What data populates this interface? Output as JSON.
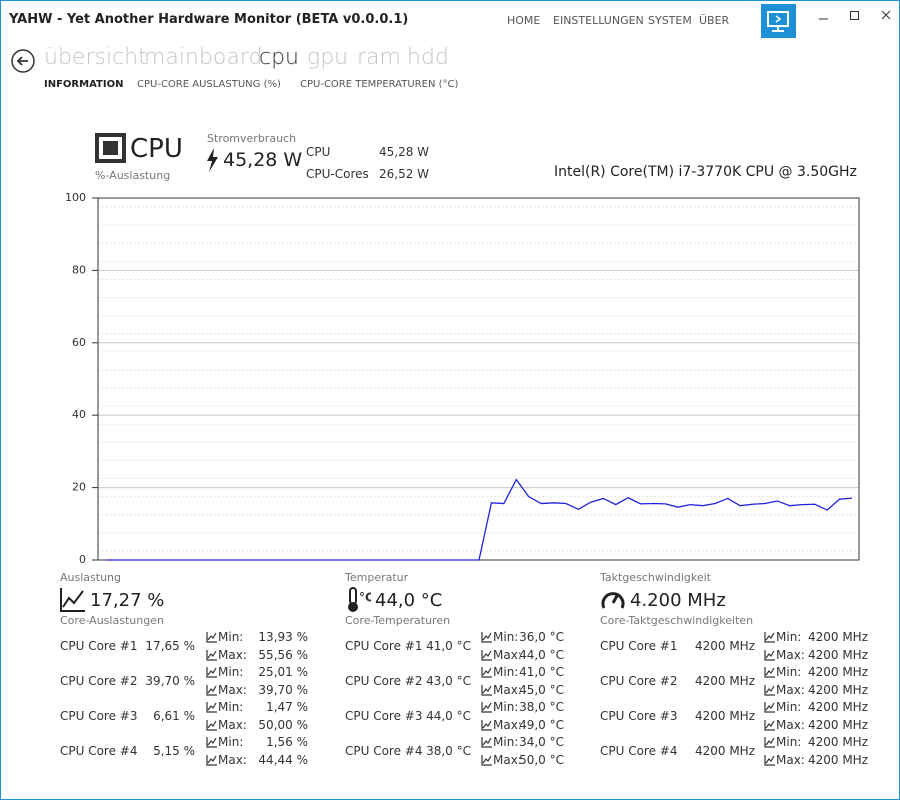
{
  "window": {
    "title": "YAHW - Yet Another Hardware Monitor (BETA v0.0.0.1)",
    "menu": [
      "HOME",
      "EINSTELLUNGEN",
      "SYSTEM",
      "ÜBER"
    ]
  },
  "tabs": [
    "übersicht",
    "mainboard",
    "cpu",
    "gpu",
    "ram",
    "hdd"
  ],
  "subtabs": [
    "INFORMATION",
    "CPU-CORE AUSLASTUNG (%)",
    "CPU-CORE TEMPERATUREN (°C)"
  ],
  "header": {
    "name": "CPU",
    "subtitle": "%-Auslastung",
    "power_label": "Stromverbrauch",
    "power": "45,28 W",
    "rows": [
      [
        "CPU",
        "45,28 W"
      ],
      [
        "CPU-Cores",
        "26,52 W"
      ]
    ],
    "model": "Intel(R) Core(TM) i7-3770K CPU @ 3.50GHz"
  },
  "chart_data": {
    "type": "line",
    "ylim": [
      0,
      100
    ],
    "yticks": [
      0,
      20,
      40,
      60,
      80,
      100
    ],
    "grid": true,
    "series": [
      {
        "color": "#2222dd",
        "values": [
          0,
          0,
          0,
          0,
          0,
          0,
          0,
          0,
          0,
          0,
          0,
          0,
          0,
          0,
          0,
          0,
          0,
          0,
          0,
          0,
          0,
          0,
          0,
          0,
          0,
          0,
          0,
          0,
          0,
          0,
          0,
          15.8,
          15.6,
          22.2,
          17.5,
          15.6,
          15.8,
          15.6,
          14,
          16,
          17,
          15.3,
          17.2,
          15.5,
          15.6,
          15.5,
          14.6,
          15.3,
          15,
          15.6,
          17,
          15,
          15.4,
          15.6,
          16.3,
          15,
          15.3,
          15.4,
          13.8,
          16.8,
          17.1
        ]
      }
    ]
  },
  "stats": {
    "min_label": "Min:",
    "max_label": "Max:",
    "sections": [
      {
        "title": "Auslastung",
        "value": "17,27 %",
        "subtitle": "Core-Auslastungen",
        "rows": [
          [
            "CPU Core #1",
            "17,65 %",
            "13,93 %",
            "55,56 %"
          ],
          [
            "CPU Core #2",
            "39,70 %",
            "25,01 %",
            "39,70 %"
          ],
          [
            "CPU Core #3",
            "6,61 %",
            "1,47 %",
            "50,00 %"
          ],
          [
            "CPU Core #4",
            "5,15 %",
            "1,56 %",
            "44,44 %"
          ]
        ]
      },
      {
        "title": "Temperatur",
        "value": "44,0 °C",
        "subtitle": "Core-Temperaturen",
        "rows": [
          [
            "CPU Core #1",
            "41,0 °C",
            "36,0 °C",
            "44,0 °C"
          ],
          [
            "CPU Core #2",
            "43,0 °C",
            "41,0 °C",
            "45,0 °C"
          ],
          [
            "CPU Core #3",
            "44,0 °C",
            "38,0 °C",
            "49,0 °C"
          ],
          [
            "CPU Core #4",
            "38,0 °C",
            "34,0 °C",
            "50,0 °C"
          ]
        ]
      },
      {
        "title": "Taktgeschwindigkeit",
        "value": "4.200 MHz",
        "subtitle": "Core-Taktgeschwindigkeiten",
        "rows": [
          [
            "CPU Core #1",
            "4200 MHz",
            "4200 MHz",
            "4200 MHz"
          ],
          [
            "CPU Core #2",
            "4200 MHz",
            "4200 MHz",
            "4200 MHz"
          ],
          [
            "CPU Core #3",
            "4200 MHz",
            "4200 MHz",
            "4200 MHz"
          ],
          [
            "CPU Core #4",
            "4200 MHz",
            "4200 MHz",
            "4200 MHz"
          ]
        ]
      }
    ]
  }
}
